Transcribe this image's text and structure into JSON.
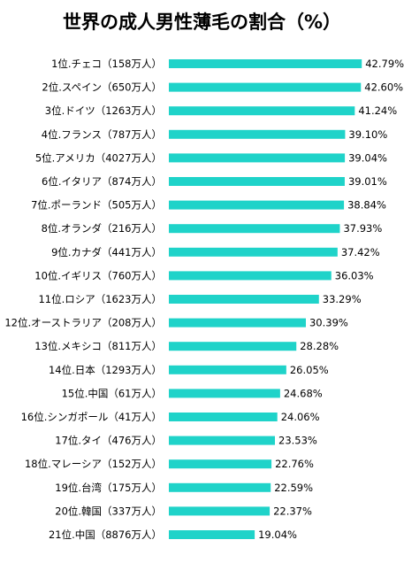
{
  "chart_data": {
    "type": "bar",
    "orientation": "horizontal",
    "title": "世界の成人男性薄毛の割合（%）",
    "xlabel": "",
    "ylabel": "",
    "xlim": [
      0,
      50
    ],
    "grid": false,
    "legend": "none",
    "bar_color": "#1fd3c9",
    "categories": [
      "1位.チェコ（158万人）",
      "2位.スペイン（650万人）",
      "3位.ドイツ（1263万人）",
      "4位.フランス（787万人）",
      "5位.アメリカ（4027万人）",
      "6位.イタリア（874万人）",
      "7位.ポーランド（505万人）",
      "8位.オランダ（216万人）",
      "9位.カナダ（441万人）",
      "10位.イギリス（760万人）",
      "11位.ロシア（1623万人）",
      "12位.オーストラリア（208万人）",
      "13位.メキシコ（811万人）",
      "14位.日本（1293万人）",
      "15位.中国（61万人）",
      "16位.シンガポール（41万人）",
      "17位.タイ（476万人）",
      "18位.マレーシア（152万人）",
      "19位.台湾（175万人）",
      "20位.韓国（337万人）",
      "21位.中国（8876万人）"
    ],
    "values": [
      42.79,
      42.6,
      41.24,
      39.1,
      39.04,
      39.01,
      38.84,
      37.93,
      37.42,
      36.03,
      33.29,
      30.39,
      28.28,
      26.05,
      24.68,
      24.06,
      23.53,
      22.76,
      22.59,
      22.37,
      19.04
    ],
    "value_labels": [
      "42.79%",
      "42.60%",
      "41.24%",
      "39.10%",
      "39.04%",
      "39.01%",
      "38.84%",
      "37.93%",
      "37.42%",
      "36.03%",
      "33.29%",
      "30.39%",
      "28.28%",
      "26.05%",
      "24.68%",
      "24.06%",
      "23.53%",
      "22.76%",
      "22.59%",
      "22.37%",
      "19.04%"
    ]
  }
}
